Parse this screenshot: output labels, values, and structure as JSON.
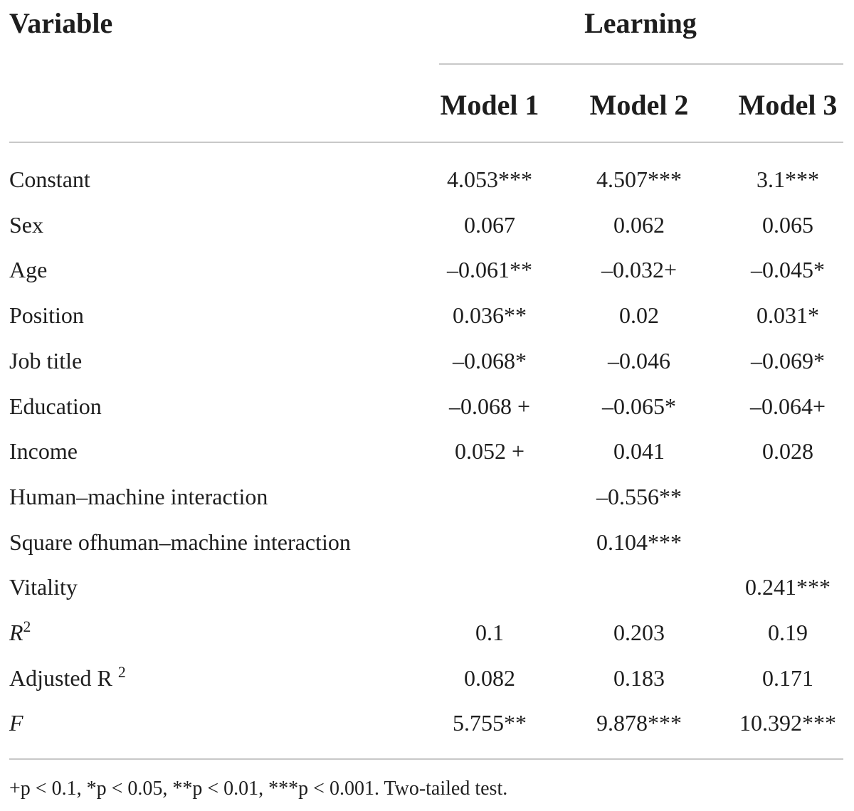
{
  "table": {
    "stub_header": "Variable",
    "group_header": "Learning",
    "columns": [
      "Model 1",
      "Model 2",
      "Model 3"
    ],
    "rows": [
      {
        "label": "Constant",
        "values": [
          "4.053***",
          "4.507***",
          "3.1***"
        ]
      },
      {
        "label": "Sex",
        "values": [
          "0.067",
          "0.062",
          "0.065"
        ]
      },
      {
        "label": "Age",
        "values": [
          "–0.061**",
          "–0.032+",
          "–0.045*"
        ]
      },
      {
        "label": "Position",
        "values": [
          "0.036**",
          "0.02",
          "0.031*"
        ]
      },
      {
        "label": "Job title",
        "values": [
          "–0.068*",
          "–0.046",
          "–0.069*"
        ]
      },
      {
        "label": "Education",
        "values": [
          "–0.068 +",
          "–0.065*",
          "–0.064+"
        ]
      },
      {
        "label": "Income",
        "values": [
          "0.052 +",
          "0.041",
          "0.028"
        ]
      },
      {
        "label": "Human–machine interaction",
        "values": [
          "",
          "–0.556**",
          ""
        ]
      },
      {
        "label": "Square ofhuman–machine interaction",
        "values": [
          "",
          "0.104***",
          ""
        ]
      },
      {
        "label": "Vitality",
        "values": [
          "",
          "",
          "0.241***"
        ]
      },
      {
        "label": "R",
        "label_sup": "2",
        "italic": true,
        "values": [
          "0.1",
          "0.203",
          "0.19"
        ]
      },
      {
        "label": "Adjusted R ",
        "label_sup": "2",
        "values": [
          "0.082",
          "0.183",
          "0.171"
        ]
      },
      {
        "label": "F",
        "italic": true,
        "values": [
          "5.755**",
          "9.878***",
          "10.392***"
        ]
      }
    ]
  },
  "footnote": "+p < 0.1, *p < 0.05, **p < 0.01, ***p < 0.001. Two-tailed test."
}
